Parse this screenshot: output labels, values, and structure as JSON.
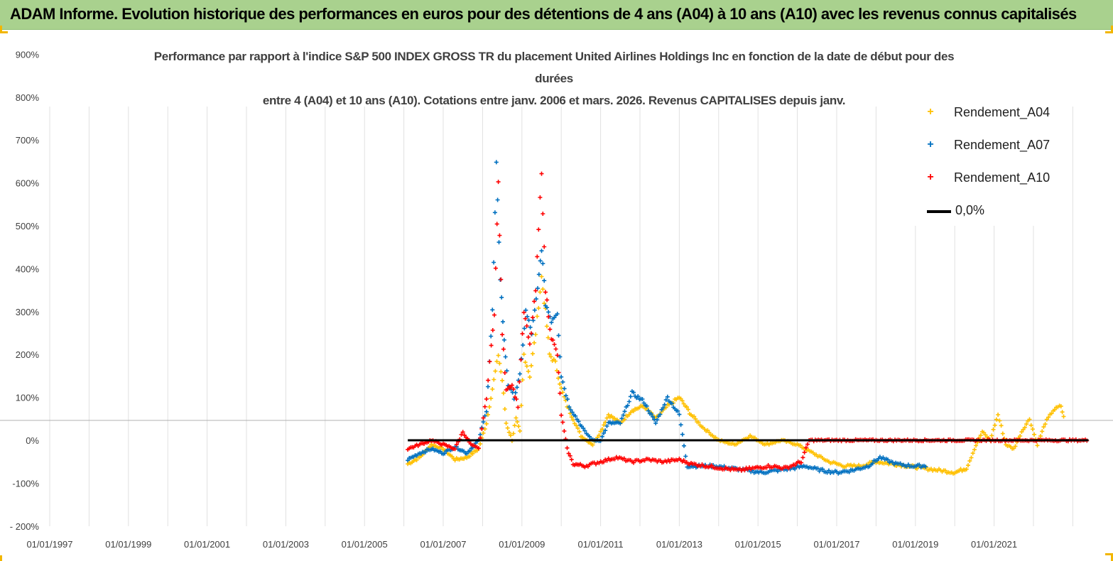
{
  "header": {
    "title": "ADAM Informe. Evolution historique des performances en euros pour des détentions de 4 ans (A04) à 10 ans (A10) avec les revenus connus capitalisés"
  },
  "colors": {
    "banner": "#a9d18e",
    "A04": "#ffc000",
    "A07": "#0070c0",
    "A10": "#ff0000",
    "zero": "#000000"
  },
  "chart_data": {
    "type": "scatter",
    "title_lines": [
      "Performance par rapport à l'indice S&P 500 INDEX GROSS TR  du placement United Airlines Holdings Inc en fonction de la date de début pour des",
      "durées",
      "entre 4 (A04) et 10 ans (A10). Cotations entre janv. 2006 et mars. 2026. Revenus CAPITALISES depuis janv."
    ],
    "xlabel": "",
    "ylabel": "",
    "x_tick_labels": [
      "01/01/1997",
      "01/01/1999",
      "01/01/2001",
      "01/01/2003",
      "01/01/2005",
      "01/01/2007",
      "01/01/2009",
      "01/01/2011",
      "01/01/2013",
      "01/01/2015",
      "01/01/2017",
      "01/01/2019",
      "01/01/2021"
    ],
    "x_range_years": [
      1997.0,
      2023.5
    ],
    "y_tick_labels": [
      "900%",
      "800%",
      "700%",
      "600%",
      "500%",
      "400%",
      "300%",
      "200%",
      "100%",
      "0%",
      "-100%",
      "- 200%"
    ],
    "y_tick_values": [
      900,
      800,
      700,
      600,
      500,
      400,
      300,
      200,
      100,
      0,
      -100,
      -200
    ],
    "ylim": [
      -200,
      900
    ],
    "grid": "vertical",
    "legend_position": "right",
    "legend": [
      {
        "label": "Rendement_A04",
        "marker": "+",
        "color": "#ffc000"
      },
      {
        "label": "Rendement_A07",
        "marker": "+",
        "color": "#0070c0"
      },
      {
        "label": "Rendement_A10",
        "marker": "+",
        "color": "#ff0000"
      },
      {
        "label": "0,0%",
        "marker": "line",
        "color": "#000000"
      }
    ],
    "zero_line": {
      "label": "0,0%",
      "x_start": 2006.1,
      "x_end": 2023.4,
      "y": 0
    },
    "series": [
      {
        "name": "Rendement_A04",
        "color": "#ffc000",
        "points": [
          [
            2006.1,
            -55
          ],
          [
            2006.4,
            -40
          ],
          [
            2006.7,
            -10
          ],
          [
            2007.0,
            -20
          ],
          [
            2007.3,
            -45
          ],
          [
            2007.6,
            -40
          ],
          [
            2007.9,
            -20
          ],
          [
            2008.1,
            40
          ],
          [
            2008.25,
            120
          ],
          [
            2008.4,
            200
          ],
          [
            2008.5,
            140
          ],
          [
            2008.6,
            40
          ],
          [
            2008.75,
            0
          ],
          [
            2008.85,
            50
          ],
          [
            2008.95,
            20
          ],
          [
            2009.05,
            200
          ],
          [
            2009.2,
            150
          ],
          [
            2009.35,
            250
          ],
          [
            2009.5,
            380
          ],
          [
            2009.6,
            300
          ],
          [
            2009.7,
            200
          ],
          [
            2009.85,
            180
          ],
          [
            2010.0,
            120
          ],
          [
            2010.15,
            80
          ],
          [
            2010.3,
            50
          ],
          [
            2010.5,
            10
          ],
          [
            2010.8,
            -10
          ],
          [
            2011.0,
            20
          ],
          [
            2011.2,
            60
          ],
          [
            2011.5,
            40
          ],
          [
            2011.8,
            70
          ],
          [
            2012.1,
            80
          ],
          [
            2012.4,
            50
          ],
          [
            2012.7,
            80
          ],
          [
            2013.0,
            100
          ],
          [
            2013.3,
            60
          ],
          [
            2013.6,
            30
          ],
          [
            2014.0,
            0
          ],
          [
            2014.4,
            -10
          ],
          [
            2014.8,
            10
          ],
          [
            2015.2,
            -10
          ],
          [
            2015.6,
            0
          ],
          [
            2016.0,
            -10
          ],
          [
            2016.4,
            -30
          ],
          [
            2016.8,
            -50
          ],
          [
            2017.2,
            -60
          ],
          [
            2017.6,
            -60
          ],
          [
            2018.0,
            -50
          ],
          [
            2018.4,
            -55
          ],
          [
            2018.8,
            -60
          ],
          [
            2019.2,
            -65
          ],
          [
            2019.6,
            -70
          ],
          [
            2020.0,
            -75
          ],
          [
            2020.3,
            -65
          ],
          [
            2020.5,
            -20
          ],
          [
            2020.7,
            20
          ],
          [
            2020.9,
            0
          ],
          [
            2021.1,
            60
          ],
          [
            2021.3,
            -10
          ],
          [
            2021.5,
            -20
          ],
          [
            2021.7,
            20
          ],
          [
            2021.9,
            50
          ],
          [
            2022.1,
            -10
          ],
          [
            2022.3,
            40
          ],
          [
            2022.5,
            70
          ],
          [
            2022.7,
            80
          ],
          [
            2022.8,
            40
          ]
        ]
      },
      {
        "name": "Rendement_A07",
        "color": "#0070c0",
        "points": [
          [
            2006.1,
            -45
          ],
          [
            2006.4,
            -30
          ],
          [
            2006.7,
            -20
          ],
          [
            2007.0,
            -30
          ],
          [
            2007.3,
            -15
          ],
          [
            2007.6,
            -30
          ],
          [
            2007.9,
            0
          ],
          [
            2008.1,
            70
          ],
          [
            2008.25,
            300
          ],
          [
            2008.35,
            640
          ],
          [
            2008.45,
            380
          ],
          [
            2008.55,
            230
          ],
          [
            2008.65,
            130
          ],
          [
            2008.8,
            100
          ],
          [
            2008.95,
            150
          ],
          [
            2009.1,
            300
          ],
          [
            2009.25,
            250
          ],
          [
            2009.4,
            350
          ],
          [
            2009.5,
            450
          ],
          [
            2009.6,
            320
          ],
          [
            2009.75,
            280
          ],
          [
            2009.9,
            300
          ],
          [
            2010.0,
            150
          ],
          [
            2010.2,
            80
          ],
          [
            2010.4,
            50
          ],
          [
            2010.6,
            20
          ],
          [
            2010.8,
            0
          ],
          [
            2011.0,
            0
          ],
          [
            2011.2,
            40
          ],
          [
            2011.5,
            40
          ],
          [
            2011.8,
            110
          ],
          [
            2012.1,
            90
          ],
          [
            2012.4,
            40
          ],
          [
            2012.7,
            100
          ],
          [
            2013.0,
            60
          ],
          [
            2013.2,
            -60
          ],
          [
            2013.5,
            -60
          ],
          [
            2013.9,
            -60
          ],
          [
            2014.3,
            -65
          ],
          [
            2014.7,
            -70
          ],
          [
            2015.1,
            -75
          ],
          [
            2015.5,
            -70
          ],
          [
            2015.9,
            -65
          ],
          [
            2016.2,
            -60
          ],
          [
            2016.6,
            -70
          ],
          [
            2017.0,
            -75
          ],
          [
            2017.4,
            -70
          ],
          [
            2017.8,
            -60
          ],
          [
            2018.1,
            -40
          ],
          [
            2018.5,
            -55
          ],
          [
            2018.9,
            -60
          ],
          [
            2019.3,
            -60
          ]
        ]
      },
      {
        "name": "Rendement_A10",
        "color": "#ff0000",
        "points": [
          [
            2006.1,
            -20
          ],
          [
            2006.4,
            -10
          ],
          [
            2006.7,
            0
          ],
          [
            2007.0,
            -10
          ],
          [
            2007.3,
            -20
          ],
          [
            2007.5,
            20
          ],
          [
            2007.7,
            -10
          ],
          [
            2007.9,
            -20
          ],
          [
            2008.1,
            100
          ],
          [
            2008.3,
            300
          ],
          [
            2008.4,
            600
          ],
          [
            2008.5,
            250
          ],
          [
            2008.6,
            120
          ],
          [
            2008.75,
            130
          ],
          [
            2008.9,
            80
          ],
          [
            2009.05,
            300
          ],
          [
            2009.2,
            220
          ],
          [
            2009.35,
            350
          ],
          [
            2009.5,
            630
          ],
          [
            2009.6,
            350
          ],
          [
            2009.75,
            240
          ],
          [
            2009.9,
            200
          ],
          [
            2010.0,
            60
          ],
          [
            2010.15,
            -20
          ],
          [
            2010.3,
            -55
          ],
          [
            2010.6,
            -60
          ],
          [
            2011.0,
            -50
          ],
          [
            2011.4,
            -40
          ],
          [
            2011.8,
            -50
          ],
          [
            2012.2,
            -45
          ],
          [
            2012.6,
            -50
          ],
          [
            2013.0,
            -45
          ],
          [
            2013.3,
            -55
          ],
          [
            2013.7,
            -60
          ],
          [
            2014.1,
            -65
          ],
          [
            2014.5,
            -70
          ],
          [
            2014.9,
            -65
          ],
          [
            2015.3,
            -60
          ],
          [
            2015.7,
            -65
          ],
          [
            2016.1,
            -50
          ],
          [
            2016.3,
            0
          ],
          [
            2017.0,
            0
          ],
          [
            2018.0,
            0
          ],
          [
            2019.0,
            0
          ],
          [
            2020.0,
            0
          ],
          [
            2021.0,
            0
          ],
          [
            2022.0,
            0
          ],
          [
            2023.0,
            0
          ],
          [
            2023.4,
            0
          ]
        ]
      }
    ]
  }
}
